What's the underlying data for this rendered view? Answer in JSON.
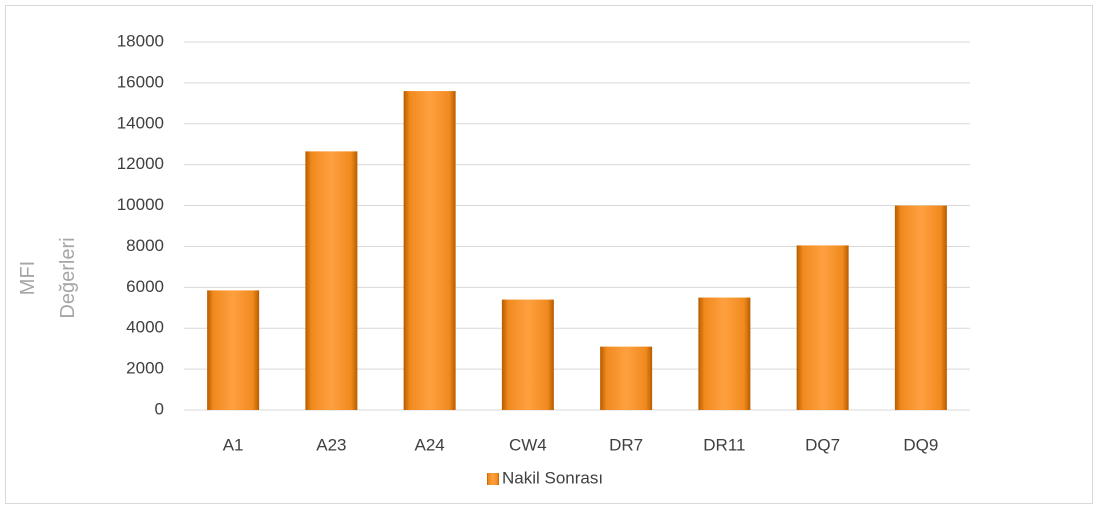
{
  "chart_data": {
    "type": "bar",
    "y_label": "MFI Değerleri",
    "categories": [
      "A1",
      "A23",
      "A24",
      "CW4",
      "DR7",
      "DR11",
      "DQ7",
      "DQ9"
    ],
    "series": [
      {
        "name": "Nakil Sonrası",
        "color": "#f7931e",
        "values": [
          5850,
          12650,
          15600,
          5400,
          3100,
          5500,
          8050,
          10000
        ]
      }
    ],
    "ylim": [
      0,
      18000
    ],
    "yticks": [
      0,
      2000,
      4000,
      6000,
      8000,
      10000,
      12000,
      14000,
      16000,
      18000
    ],
    "grid": true,
    "legend": "bottom"
  }
}
